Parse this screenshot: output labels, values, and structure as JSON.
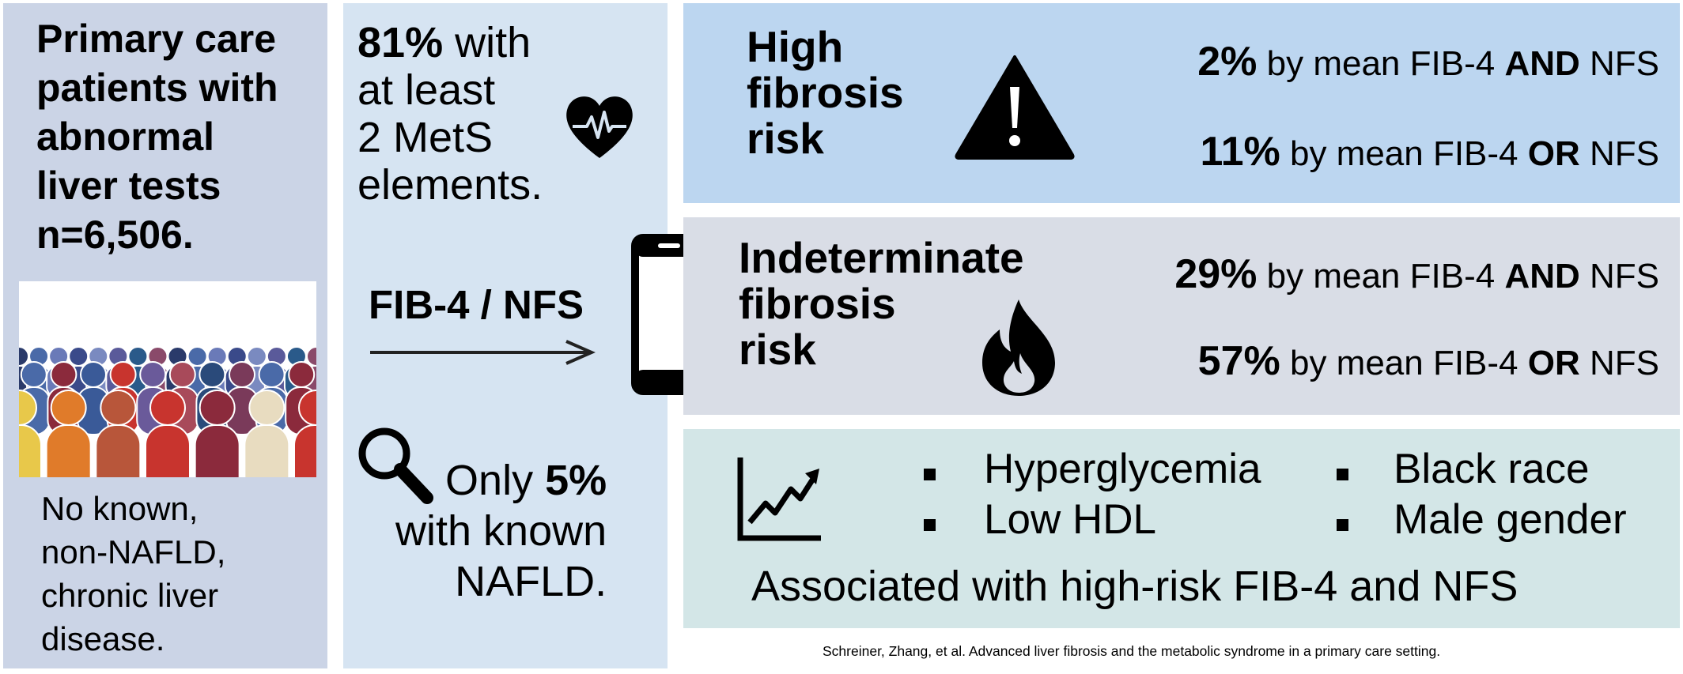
{
  "population": {
    "title_lines": [
      "Primary care",
      "patients with",
      "abnormal",
      "liver tests",
      "n=6,506."
    ],
    "note_lines": [
      "No known,",
      "non-NAFLD,",
      "chronic liver",
      "disease."
    ],
    "crowd_colors": [
      "#e8c84a",
      "#e07b2a",
      "#b8563a",
      "#c8342e",
      "#8b2a3c",
      "#e8dcc0",
      "#4a6aa8",
      "#2a3a6a"
    ]
  },
  "metabolic": {
    "stat_value": "81%",
    "stat_rest_first": " with",
    "stat_lines": [
      "at least",
      "2 MetS",
      "elements."
    ],
    "arrow_label": "FIB-4 / NFS",
    "known_prefix": "Only ",
    "known_value": "5%",
    "known_lines": [
      "with known",
      "NAFLD."
    ],
    "icons": [
      "heart-pulse-icon",
      "arrow-right-icon",
      "magnifier-icon",
      "phone-icon"
    ]
  },
  "high_risk": {
    "label_lines": [
      "High",
      "fibrosis",
      "risk"
    ],
    "icon": "warning-icon",
    "color": "#bcd6f0",
    "stats": [
      {
        "value": "2%",
        "text": " by mean FIB-4 ",
        "op": "AND",
        "tail": " NFS"
      },
      {
        "value": "11%",
        "text": " by mean FIB-4 ",
        "op": "OR",
        "tail": " NFS"
      }
    ]
  },
  "indeterminate_risk": {
    "label_lines": [
      "Indeterminate",
      "fibrosis",
      "risk"
    ],
    "icon": "flame-icon",
    "color": "#d9dde6",
    "stats": [
      {
        "value": "29%",
        "text": " by mean FIB-4 ",
        "op": "AND",
        "tail": " NFS"
      },
      {
        "value": "57%",
        "text": " by mean FIB-4 ",
        "op": "OR",
        "tail": " NFS"
      }
    ]
  },
  "associations": {
    "icon": "trend-chart-icon",
    "factors": [
      "Hyperglycemia",
      "Black race",
      "Low HDL",
      "Male gender"
    ],
    "caption": "Associated with high-risk FIB-4 and NFS"
  },
  "footnote": "Schreiner, Zhang, et al. Advanced liver fibrosis and the metabolic syndrome in a primary care setting."
}
